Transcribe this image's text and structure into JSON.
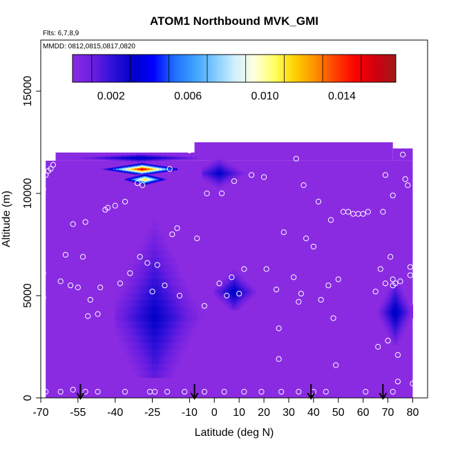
{
  "chart_data": {
    "type": "heatmap",
    "title": "ATOM1 Northbound MVK_GMI",
    "flights_label": "Flts: 6,7,8,9",
    "dates_label": "MMDD: 0812,0815,0817,0820",
    "xlabel": "Latitude (deg N)",
    "ylabel": "Altitude (m)",
    "xlim": [
      -70,
      86
    ],
    "ylim": [
      0,
      17500
    ],
    "x_ticks": [
      -70,
      -55,
      -40,
      -25,
      -10,
      0,
      10,
      20,
      30,
      40,
      50,
      60,
      70,
      80
    ],
    "x_tick_labels": [
      "-70",
      "-55",
      "-40",
      "-25",
      "-10",
      "0",
      "10",
      "20",
      "30",
      "40",
      "50",
      "60",
      "70",
      "80"
    ],
    "y_ticks": [
      0,
      5000,
      10000,
      15000
    ],
    "y_tick_labels": [
      "0",
      "5000",
      "10000",
      "15000"
    ],
    "colorbar": {
      "range": [
        0,
        0.0168
      ],
      "ticks": [
        0.002,
        0.006,
        0.01,
        0.014
      ],
      "tick_labels": [
        "0.002",
        "0.006",
        "0.010",
        "0.014"
      ],
      "colors": [
        "#8a2be2",
        "#6a1ee0",
        "#3010d8",
        "#0000c8",
        "#0000ff",
        "#1e6cff",
        "#3ca0ff",
        "#7cc8ff",
        "#cfeeff",
        "#ffffe0",
        "#ffff60",
        "#ffd000",
        "#ff9000",
        "#ff4000",
        "#ff0000",
        "#d00010",
        "#a01818"
      ]
    },
    "background_value": 0.0,
    "field_regions": [
      {
        "lat": [
          -68,
          80
        ],
        "alt": [
          0,
          11600
        ]
      },
      {
        "lat": [
          -64,
          -8
        ],
        "alt": [
          11600,
          12000
        ]
      },
      {
        "lat": [
          -8,
          72
        ],
        "alt": [
          11600,
          12500
        ]
      },
      {
        "lat": [
          72,
          80
        ],
        "alt": [
          11600,
          12200
        ]
      }
    ],
    "blobs": [
      {
        "lat_range": [
          -40,
          -5
        ],
        "alt_range": [
          1000,
          10000
        ],
        "peak_lat": -24,
        "peak_alt": 4000,
        "peak": 0.0032
      },
      {
        "lat_range": [
          -60,
          -7
        ],
        "alt_range": [
          11550,
          11950
        ],
        "peak_lat": -30,
        "peak_alt": 11750,
        "peak": 0.004
      },
      {
        "lat_range": [
          -47,
          -15
        ],
        "alt_range": [
          10900,
          11500
        ],
        "peak_lat": -29,
        "peak_alt": 11200,
        "peak": 0.016
      },
      {
        "lat_range": [
          -36,
          -18
        ],
        "alt_range": [
          10400,
          10950
        ],
        "peak_lat": -28,
        "peak_alt": 10700,
        "peak": 0.012
      },
      {
        "lat_range": [
          -5,
          16
        ],
        "alt_range": [
          10300,
          11700
        ],
        "peak_lat": 2,
        "peak_alt": 11000,
        "peak": 0.0032
      },
      {
        "lat_range": [
          0,
          18
        ],
        "alt_range": [
          4300,
          6400
        ],
        "peak_lat": 8,
        "peak_alt": 5200,
        "peak": 0.0035
      },
      {
        "lat_range": [
          66,
          80
        ],
        "alt_range": [
          2600,
          6000
        ],
        "peak_lat": 73,
        "peak_alt": 4200,
        "peak": 0.0036
      }
    ],
    "flight_points": [
      {
        "lat": -69,
        "alt": 4900
      },
      {
        "lat": -69,
        "alt": 6100
      },
      {
        "lat": -69,
        "alt": 10200
      },
      {
        "lat": -68,
        "alt": 10900
      },
      {
        "lat": -67,
        "alt": 11100
      },
      {
        "lat": -66,
        "alt": 11200
      },
      {
        "lat": -65,
        "alt": 11400
      },
      {
        "lat": -62,
        "alt": 5700
      },
      {
        "lat": -60,
        "alt": 7000
      },
      {
        "lat": -58,
        "alt": 5500
      },
      {
        "lat": -57,
        "alt": 8500
      },
      {
        "lat": -55,
        "alt": 5400
      },
      {
        "lat": -53,
        "alt": 6900
      },
      {
        "lat": -52,
        "alt": 8600
      },
      {
        "lat": -51,
        "alt": 4000
      },
      {
        "lat": -50,
        "alt": 4800
      },
      {
        "lat": -47,
        "alt": 4100
      },
      {
        "lat": -46,
        "alt": 5400
      },
      {
        "lat": -44,
        "alt": 9200
      },
      {
        "lat": -43,
        "alt": 9300
      },
      {
        "lat": -40,
        "alt": 9400
      },
      {
        "lat": -38,
        "alt": 5600
      },
      {
        "lat": -36,
        "alt": 9600
      },
      {
        "lat": -34,
        "alt": 6100
      },
      {
        "lat": -31,
        "alt": 10500
      },
      {
        "lat": -30,
        "alt": 6900
      },
      {
        "lat": -29,
        "alt": 10400
      },
      {
        "lat": -27,
        "alt": 6600
      },
      {
        "lat": -25,
        "alt": 5200
      },
      {
        "lat": -23,
        "alt": 6500
      },
      {
        "lat": -20,
        "alt": 5500
      },
      {
        "lat": -18,
        "alt": 11200
      },
      {
        "lat": -17,
        "alt": 8000
      },
      {
        "lat": -15,
        "alt": 8300
      },
      {
        "lat": -14,
        "alt": 5000
      },
      {
        "lat": -10,
        "alt": 12100
      },
      {
        "lat": -7,
        "alt": 7800
      },
      {
        "lat": -4,
        "alt": 4500
      },
      {
        "lat": -3,
        "alt": 10000
      },
      {
        "lat": 2,
        "alt": 5600
      },
      {
        "lat": 3,
        "alt": 10000
      },
      {
        "lat": 5,
        "alt": 5000
      },
      {
        "lat": 7,
        "alt": 5900
      },
      {
        "lat": 8,
        "alt": 10600
      },
      {
        "lat": 10,
        "alt": 5100
      },
      {
        "lat": 12,
        "alt": 6300
      },
      {
        "lat": 15,
        "alt": 10900
      },
      {
        "lat": 20,
        "alt": 10800
      },
      {
        "lat": 21,
        "alt": 6300
      },
      {
        "lat": 25,
        "alt": 5300
      },
      {
        "lat": 26,
        "alt": 3400
      },
      {
        "lat": 26,
        "alt": 1900
      },
      {
        "lat": 28,
        "alt": 8100
      },
      {
        "lat": 32,
        "alt": 5900
      },
      {
        "lat": 33,
        "alt": 11700
      },
      {
        "lat": 34,
        "alt": 4700
      },
      {
        "lat": 35,
        "alt": 5100
      },
      {
        "lat": 36,
        "alt": 10400
      },
      {
        "lat": 37,
        "alt": 7800
      },
      {
        "lat": 40,
        "alt": 7400
      },
      {
        "lat": 42,
        "alt": 9600
      },
      {
        "lat": 43,
        "alt": 4800
      },
      {
        "lat": 46,
        "alt": 5500
      },
      {
        "lat": 47,
        "alt": 8700
      },
      {
        "lat": 48,
        "alt": 3900
      },
      {
        "lat": 49,
        "alt": 1600
      },
      {
        "lat": 50,
        "alt": 5800
      },
      {
        "lat": 52,
        "alt": 9100
      },
      {
        "lat": 54,
        "alt": 9100
      },
      {
        "lat": 56,
        "alt": 9000
      },
      {
        "lat": 58,
        "alt": 9000
      },
      {
        "lat": 60,
        "alt": 9000
      },
      {
        "lat": 62,
        "alt": 9100
      },
      {
        "lat": 65,
        "alt": 5200
      },
      {
        "lat": 66,
        "alt": 2500
      },
      {
        "lat": 67,
        "alt": 6300
      },
      {
        "lat": 68,
        "alt": 9100
      },
      {
        "lat": 69,
        "alt": 5600
      },
      {
        "lat": 69,
        "alt": 10900
      },
      {
        "lat": 70,
        "alt": 2800
      },
      {
        "lat": 71,
        "alt": 6900
      },
      {
        "lat": 72,
        "alt": 5500
      },
      {
        "lat": 72,
        "alt": 5800
      },
      {
        "lat": 72,
        "alt": 9900
      },
      {
        "lat": 73,
        "alt": 5600
      },
      {
        "lat": 74,
        "alt": 2100
      },
      {
        "lat": 74,
        "alt": 800
      },
      {
        "lat": 75,
        "alt": 5700
      },
      {
        "lat": 76,
        "alt": 11900
      },
      {
        "lat": 77,
        "alt": 10700
      },
      {
        "lat": 78,
        "alt": 10400
      },
      {
        "lat": 79,
        "alt": 6000
      },
      {
        "lat": 79,
        "alt": 6400
      },
      {
        "lat": 80,
        "alt": 700
      },
      {
        "lat": -68,
        "alt": 300
      },
      {
        "lat": -62,
        "alt": 300
      },
      {
        "lat": -57,
        "alt": 400
      },
      {
        "lat": -52,
        "alt": 300
      },
      {
        "lat": -47,
        "alt": 300
      },
      {
        "lat": -36,
        "alt": 300
      },
      {
        "lat": -26,
        "alt": 300
      },
      {
        "lat": -24,
        "alt": 300
      },
      {
        "lat": -19,
        "alt": 300
      },
      {
        "lat": -12,
        "alt": 300
      },
      {
        "lat": -4,
        "alt": 300
      },
      {
        "lat": 4,
        "alt": 300
      },
      {
        "lat": 12,
        "alt": 300
      },
      {
        "lat": 19,
        "alt": 300
      },
      {
        "lat": 27,
        "alt": 300
      },
      {
        "lat": 34,
        "alt": 300
      },
      {
        "lat": 40,
        "alt": 300
      },
      {
        "lat": 45,
        "alt": 300
      },
      {
        "lat": 61,
        "alt": 300
      },
      {
        "lat": 72,
        "alt": 300
      }
    ],
    "arrows_lat": [
      -54,
      -8,
      39,
      68
    ],
    "grid": false,
    "legend": "colorbar-top-inside"
  }
}
